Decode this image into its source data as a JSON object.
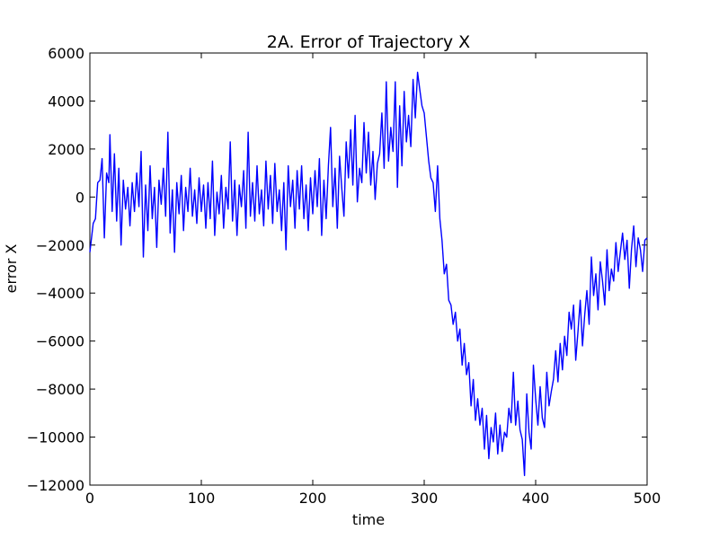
{
  "chart_data": {
    "type": "line",
    "title": "2A. Error of Trajectory X",
    "xlabel": "time",
    "ylabel": "error X",
    "xlim": [
      0,
      500
    ],
    "ylim": [
      -12000,
      6000
    ],
    "xticks": [
      0,
      100,
      200,
      300,
      400,
      500
    ],
    "xtick_labels": [
      "0",
      "100",
      "200",
      "300",
      "400",
      "500"
    ],
    "yticks": [
      6000,
      4000,
      2000,
      0,
      -2000,
      -4000,
      -6000,
      -8000,
      -10000,
      -12000
    ],
    "ytick_labels": [
      "6000",
      "4000",
      "2000",
      "0",
      "−2000",
      "−4000",
      "−6000",
      "−8000",
      "−10000",
      "−12000"
    ],
    "grid": false,
    "series": [
      {
        "color": "#0000ff",
        "points": [
          [
            0,
            -2300
          ],
          [
            3,
            -1100
          ],
          [
            5,
            -900
          ],
          [
            7,
            600
          ],
          [
            9,
            700
          ],
          [
            11,
            1600
          ],
          [
            13,
            -1700
          ],
          [
            15,
            1000
          ],
          [
            17,
            600
          ],
          [
            18,
            2600
          ],
          [
            20,
            -600
          ],
          [
            22,
            1800
          ],
          [
            24,
            -1000
          ],
          [
            26,
            1200
          ],
          [
            28,
            -2000
          ],
          [
            30,
            700
          ],
          [
            32,
            -500
          ],
          [
            34,
            400
          ],
          [
            36,
            -1200
          ],
          [
            38,
            600
          ],
          [
            40,
            -600
          ],
          [
            42,
            1000
          ],
          [
            44,
            -400
          ],
          [
            46,
            1900
          ],
          [
            48,
            -2500
          ],
          [
            50,
            500
          ],
          [
            52,
            -1400
          ],
          [
            54,
            1300
          ],
          [
            56,
            -900
          ],
          [
            58,
            400
          ],
          [
            60,
            -2100
          ],
          [
            62,
            700
          ],
          [
            64,
            -300
          ],
          [
            66,
            1200
          ],
          [
            68,
            -800
          ],
          [
            70,
            2700
          ],
          [
            72,
            -1500
          ],
          [
            74,
            300
          ],
          [
            76,
            -2300
          ],
          [
            78,
            600
          ],
          [
            80,
            -700
          ],
          [
            82,
            900
          ],
          [
            84,
            -1400
          ],
          [
            86,
            400
          ],
          [
            88,
            -600
          ],
          [
            90,
            1200
          ],
          [
            92,
            -800
          ],
          [
            94,
            300
          ],
          [
            96,
            -1100
          ],
          [
            98,
            800
          ],
          [
            100,
            -600
          ],
          [
            102,
            500
          ],
          [
            104,
            -1300
          ],
          [
            106,
            600
          ],
          [
            108,
            -900
          ],
          [
            110,
            1500
          ],
          [
            112,
            -1600
          ],
          [
            114,
            200
          ],
          [
            116,
            -700
          ],
          [
            118,
            900
          ],
          [
            120,
            -1300
          ],
          [
            122,
            400
          ],
          [
            124,
            -500
          ],
          [
            126,
            2300
          ],
          [
            128,
            -1000
          ],
          [
            130,
            700
          ],
          [
            132,
            -1600
          ],
          [
            134,
            500
          ],
          [
            136,
            -400
          ],
          [
            138,
            1100
          ],
          [
            140,
            -1300
          ],
          [
            142,
            2700
          ],
          [
            144,
            -800
          ],
          [
            146,
            600
          ],
          [
            148,
            -1000
          ],
          [
            150,
            1300
          ],
          [
            152,
            -700
          ],
          [
            154,
            300
          ],
          [
            156,
            -1200
          ],
          [
            158,
            1500
          ],
          [
            160,
            -500
          ],
          [
            162,
            900
          ],
          [
            164,
            -1100
          ],
          [
            166,
            1400
          ],
          [
            168,
            -600
          ],
          [
            170,
            300
          ],
          [
            172,
            -1400
          ],
          [
            174,
            600
          ],
          [
            176,
            -2200
          ],
          [
            178,
            1300
          ],
          [
            180,
            -400
          ],
          [
            182,
            700
          ],
          [
            184,
            -1300
          ],
          [
            186,
            1100
          ],
          [
            188,
            -500
          ],
          [
            190,
            1300
          ],
          [
            192,
            -900
          ],
          [
            194,
            500
          ],
          [
            196,
            -1400
          ],
          [
            198,
            800
          ],
          [
            200,
            -700
          ],
          [
            202,
            1100
          ],
          [
            204,
            -400
          ],
          [
            206,
            1600
          ],
          [
            208,
            -1600
          ],
          [
            210,
            700
          ],
          [
            212,
            -900
          ],
          [
            214,
            1300
          ],
          [
            216,
            2900
          ],
          [
            218,
            -400
          ],
          [
            220,
            1200
          ],
          [
            222,
            -1300
          ],
          [
            224,
            1700
          ],
          [
            226,
            400
          ],
          [
            228,
            -800
          ],
          [
            230,
            2300
          ],
          [
            232,
            800
          ],
          [
            234,
            2800
          ],
          [
            236,
            500
          ],
          [
            238,
            3400
          ],
          [
            240,
            -200
          ],
          [
            242,
            1200
          ],
          [
            244,
            600
          ],
          [
            246,
            3100
          ],
          [
            248,
            1000
          ],
          [
            250,
            2700
          ],
          [
            252,
            500
          ],
          [
            254,
            1900
          ],
          [
            256,
            -100
          ],
          [
            258,
            1400
          ],
          [
            260,
            1800
          ],
          [
            262,
            3500
          ],
          [
            264,
            1200
          ],
          [
            266,
            4800
          ],
          [
            268,
            1500
          ],
          [
            270,
            2900
          ],
          [
            272,
            1900
          ],
          [
            274,
            4800
          ],
          [
            276,
            400
          ],
          [
            278,
            3800
          ],
          [
            280,
            1300
          ],
          [
            282,
            4400
          ],
          [
            284,
            2300
          ],
          [
            286,
            3400
          ],
          [
            288,
            2100
          ],
          [
            290,
            4900
          ],
          [
            292,
            3300
          ],
          [
            294,
            5200
          ],
          [
            296,
            4500
          ],
          [
            298,
            3800
          ],
          [
            300,
            3500
          ],
          [
            302,
            2500
          ],
          [
            304,
            1500
          ],
          [
            306,
            800
          ],
          [
            308,
            600
          ],
          [
            310,
            -600
          ],
          [
            312,
            1300
          ],
          [
            314,
            -900
          ],
          [
            316,
            -1800
          ],
          [
            318,
            -3200
          ],
          [
            320,
            -2800
          ],
          [
            322,
            -4300
          ],
          [
            324,
            -4500
          ],
          [
            326,
            -5300
          ],
          [
            328,
            -4800
          ],
          [
            330,
            -6000
          ],
          [
            332,
            -5500
          ],
          [
            334,
            -7000
          ],
          [
            336,
            -6100
          ],
          [
            338,
            -7400
          ],
          [
            340,
            -6900
          ],
          [
            342,
            -8700
          ],
          [
            344,
            -7600
          ],
          [
            346,
            -9300
          ],
          [
            348,
            -8400
          ],
          [
            350,
            -9500
          ],
          [
            352,
            -8800
          ],
          [
            354,
            -10500
          ],
          [
            356,
            -9100
          ],
          [
            358,
            -10900
          ],
          [
            360,
            -9600
          ],
          [
            362,
            -10200
          ],
          [
            364,
            -9000
          ],
          [
            366,
            -10700
          ],
          [
            368,
            -9500
          ],
          [
            370,
            -10600
          ],
          [
            372,
            -9800
          ],
          [
            374,
            -10000
          ],
          [
            376,
            -8800
          ],
          [
            378,
            -9400
          ],
          [
            380,
            -7300
          ],
          [
            382,
            -9500
          ],
          [
            384,
            -8500
          ],
          [
            386,
            -9700
          ],
          [
            388,
            -10100
          ],
          [
            390,
            -11600
          ],
          [
            392,
            -8200
          ],
          [
            394,
            -9800
          ],
          [
            396,
            -10500
          ],
          [
            398,
            -7000
          ],
          [
            400,
            -8400
          ],
          [
            402,
            -9500
          ],
          [
            404,
            -7900
          ],
          [
            406,
            -9200
          ],
          [
            408,
            -9600
          ],
          [
            410,
            -7300
          ],
          [
            412,
            -8700
          ],
          [
            414,
            -8100
          ],
          [
            416,
            -7600
          ],
          [
            418,
            -6400
          ],
          [
            420,
            -7700
          ],
          [
            422,
            -6100
          ],
          [
            424,
            -7200
          ],
          [
            426,
            -5800
          ],
          [
            428,
            -6600
          ],
          [
            430,
            -4800
          ],
          [
            432,
            -5500
          ],
          [
            434,
            -4500
          ],
          [
            436,
            -6800
          ],
          [
            438,
            -5600
          ],
          [
            440,
            -4300
          ],
          [
            442,
            -6200
          ],
          [
            444,
            -4900
          ],
          [
            446,
            -3900
          ],
          [
            448,
            -5300
          ],
          [
            450,
            -2500
          ],
          [
            452,
            -4100
          ],
          [
            454,
            -3200
          ],
          [
            456,
            -4700
          ],
          [
            458,
            -2700
          ],
          [
            460,
            -3500
          ],
          [
            462,
            -4500
          ],
          [
            464,
            -2200
          ],
          [
            466,
            -3900
          ],
          [
            468,
            -3000
          ],
          [
            470,
            -3500
          ],
          [
            472,
            -1900
          ],
          [
            474,
            -3100
          ],
          [
            476,
            -2300
          ],
          [
            478,
            -1500
          ],
          [
            480,
            -2600
          ],
          [
            482,
            -1800
          ],
          [
            484,
            -3800
          ],
          [
            486,
            -2200
          ],
          [
            488,
            -1200
          ],
          [
            490,
            -2900
          ],
          [
            492,
            -1700
          ],
          [
            494,
            -2200
          ],
          [
            496,
            -3100
          ],
          [
            498,
            -1800
          ],
          [
            500,
            -1700
          ]
        ]
      }
    ]
  }
}
